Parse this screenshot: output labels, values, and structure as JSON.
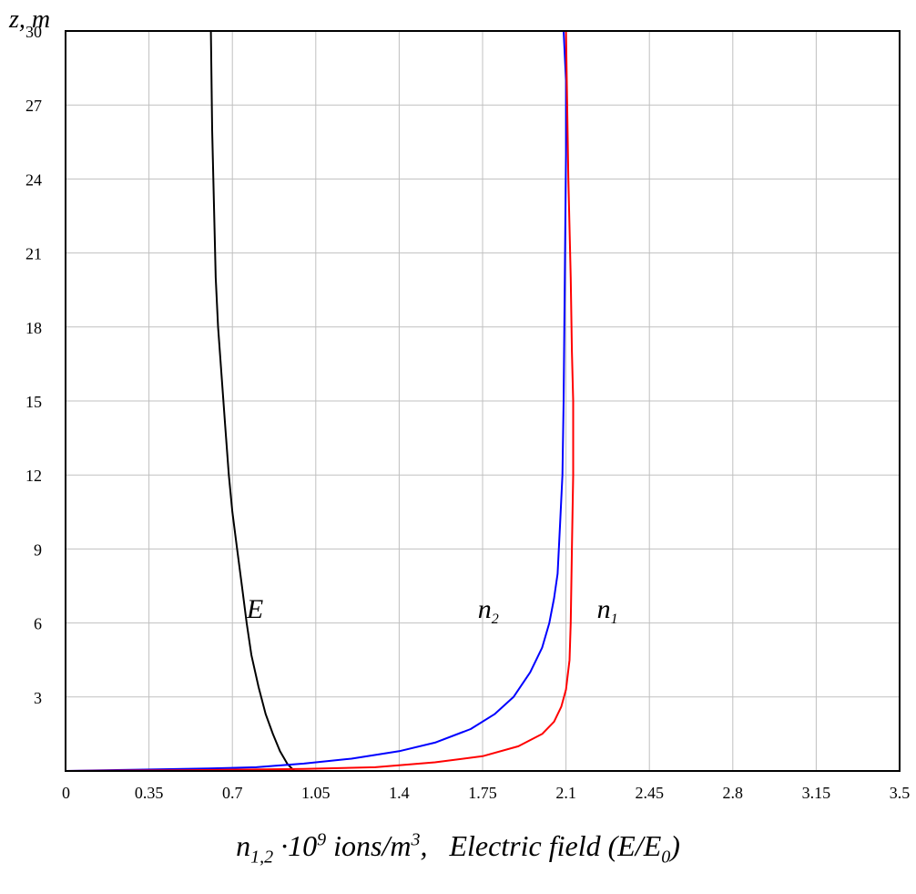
{
  "chart_data": {
    "type": "line",
    "ylabel": "z, m",
    "xlabel_parts": {
      "n": "n",
      "n_sub": "1,2",
      "mult": " ·10",
      "exp": "9",
      "units": " ions/m",
      "units_exp": "3",
      "sep": ",",
      "field": "Electric field (E/E",
      "field_sub": "0",
      "field_end": ")"
    },
    "xlim": [
      0,
      3.5
    ],
    "ylim": [
      0,
      30
    ],
    "xticks": [
      "0",
      "0.35",
      "0.7",
      "1.05",
      "1.4",
      "1.75",
      "2.1",
      "2.45",
      "2.8",
      "3.15",
      "3.5"
    ],
    "yticks": [
      "3",
      "6",
      "9",
      "12",
      "15",
      "18",
      "21",
      "24",
      "27",
      "30"
    ],
    "xtick_values": [
      0,
      0.35,
      0.7,
      1.05,
      1.4,
      1.75,
      2.1,
      2.45,
      2.8,
      3.15,
      3.5
    ],
    "ytick_values": [
      3,
      6,
      9,
      12,
      15,
      18,
      21,
      24,
      27,
      30
    ],
    "grid": true,
    "series": [
      {
        "name": "E",
        "label": "E",
        "color": "#000000",
        "points": [
          [
            0.96,
            0
          ],
          [
            0.93,
            0.3
          ],
          [
            0.9,
            0.8
          ],
          [
            0.87,
            1.5
          ],
          [
            0.84,
            2.3
          ],
          [
            0.81,
            3.4
          ],
          [
            0.78,
            4.7
          ],
          [
            0.76,
            6.0
          ],
          [
            0.74,
            7.5
          ],
          [
            0.72,
            9.0
          ],
          [
            0.7,
            10.5
          ],
          [
            0.685,
            12.0
          ],
          [
            0.67,
            14.0
          ],
          [
            0.655,
            16.0
          ],
          [
            0.64,
            18.0
          ],
          [
            0.63,
            20.0
          ],
          [
            0.625,
            22.0
          ],
          [
            0.62,
            24.0
          ],
          [
            0.615,
            26.0
          ],
          [
            0.61,
            30.0
          ]
        ]
      },
      {
        "name": "n2",
        "label": "n",
        "label_sub": "2",
        "color": "#0000ff",
        "points": [
          [
            0,
            0
          ],
          [
            0.3,
            0.05
          ],
          [
            0.6,
            0.1
          ],
          [
            0.8,
            0.15
          ],
          [
            1.0,
            0.3
          ],
          [
            1.2,
            0.5
          ],
          [
            1.4,
            0.8
          ],
          [
            1.55,
            1.15
          ],
          [
            1.7,
            1.7
          ],
          [
            1.8,
            2.3
          ],
          [
            1.88,
            3.0
          ],
          [
            1.95,
            4.0
          ],
          [
            2.0,
            5.0
          ],
          [
            2.03,
            6.0
          ],
          [
            2.05,
            7.0
          ],
          [
            2.065,
            8.0
          ],
          [
            2.075,
            10.0
          ],
          [
            2.085,
            12.0
          ],
          [
            2.09,
            15.0
          ],
          [
            2.095,
            20.0
          ],
          [
            2.1,
            25.0
          ],
          [
            2.1,
            28.0
          ],
          [
            2.09,
            30.0
          ]
        ]
      },
      {
        "name": "n1",
        "label": "n",
        "label_sub": "1",
        "color": "#ff0000",
        "points": [
          [
            0,
            0
          ],
          [
            0.5,
            0.03
          ],
          [
            1.0,
            0.08
          ],
          [
            1.3,
            0.15
          ],
          [
            1.55,
            0.35
          ],
          [
            1.75,
            0.6
          ],
          [
            1.9,
            1.0
          ],
          [
            2.0,
            1.5
          ],
          [
            2.05,
            2.0
          ],
          [
            2.08,
            2.6
          ],
          [
            2.1,
            3.3
          ],
          [
            2.115,
            4.5
          ],
          [
            2.12,
            6.0
          ],
          [
            2.125,
            9.0
          ],
          [
            2.13,
            12.0
          ],
          [
            2.13,
            15.0
          ],
          [
            2.125,
            17.0
          ],
          [
            2.12,
            20.0
          ],
          [
            2.11,
            24.0
          ],
          [
            2.105,
            27.0
          ],
          [
            2.1,
            30.0
          ]
        ]
      }
    ],
    "labels": [
      {
        "text": "E",
        "x": 0.76,
        "y": 6.2
      },
      {
        "text": "n",
        "sub": "2",
        "x": 1.73,
        "y": 6.2
      },
      {
        "text": "n",
        "sub": "1",
        "x": 2.23,
        "y": 6.2
      }
    ]
  }
}
